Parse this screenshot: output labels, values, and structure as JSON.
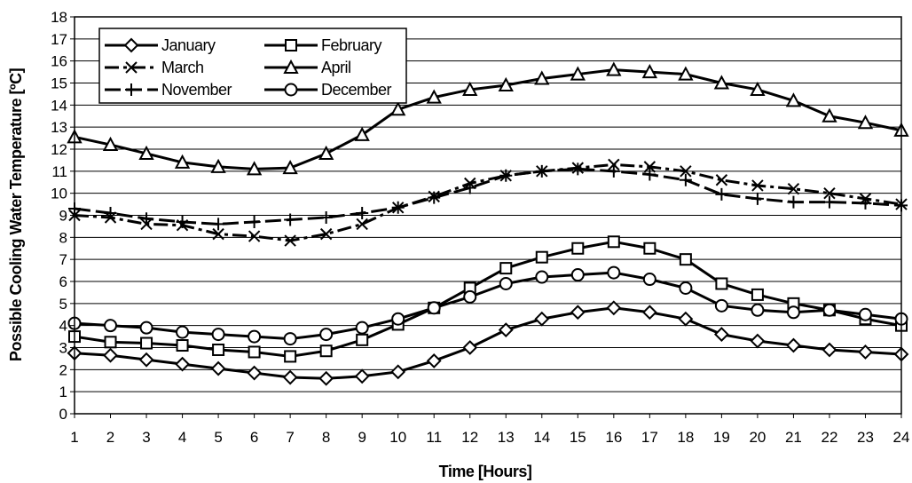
{
  "chart_data": {
    "type": "line",
    "xlabel": "Time [Hours]",
    "ylabel": "Possible Cooling Water Temperature [ºC]",
    "x": [
      1,
      2,
      3,
      4,
      5,
      6,
      7,
      8,
      9,
      10,
      11,
      12,
      13,
      14,
      15,
      16,
      17,
      18,
      19,
      20,
      21,
      22,
      23,
      24
    ],
    "xlim": [
      1,
      24
    ],
    "ylim": [
      0,
      18
    ],
    "ytick_step": 1,
    "grid": "horizontal",
    "legend_position": "top-left",
    "series": [
      {
        "name": "January",
        "marker": "diamond",
        "dash": "solid",
        "values": [
          2.75,
          2.65,
          2.45,
          2.25,
          2.05,
          1.85,
          1.65,
          1.6,
          1.7,
          1.9,
          2.4,
          3.0,
          3.8,
          4.3,
          4.6,
          4.8,
          4.6,
          4.3,
          3.6,
          3.3,
          3.1,
          2.9,
          2.8,
          2.7
        ]
      },
      {
        "name": "February",
        "marker": "square",
        "dash": "solid",
        "values": [
          3.5,
          3.25,
          3.2,
          3.1,
          2.9,
          2.8,
          2.6,
          2.85,
          3.35,
          4.05,
          4.8,
          5.7,
          6.6,
          7.1,
          7.5,
          7.8,
          7.5,
          7.0,
          5.9,
          5.4,
          5.0,
          4.7,
          4.3,
          4.0
        ]
      },
      {
        "name": "March",
        "marker": "x",
        "dash": "dashdot",
        "values": [
          9.0,
          8.9,
          8.6,
          8.55,
          8.15,
          8.05,
          7.85,
          8.15,
          8.6,
          9.35,
          9.85,
          10.45,
          10.8,
          11.0,
          11.15,
          11.3,
          11.2,
          11.0,
          10.6,
          10.35,
          10.2,
          10.0,
          9.75,
          9.5
        ]
      },
      {
        "name": "April",
        "marker": "triangle",
        "dash": "solid",
        "values": [
          12.55,
          12.2,
          11.8,
          11.4,
          11.2,
          11.1,
          11.15,
          11.8,
          12.65,
          13.8,
          14.35,
          14.7,
          14.9,
          15.2,
          15.4,
          15.6,
          15.5,
          15.4,
          15.0,
          14.7,
          14.2,
          13.5,
          13.2,
          12.85
        ]
      },
      {
        "name": "November",
        "marker": "plus",
        "dash": "longdash",
        "values": [
          9.3,
          9.1,
          8.85,
          8.7,
          8.6,
          8.7,
          8.8,
          8.9,
          9.1,
          9.35,
          9.8,
          10.25,
          10.8,
          11.0,
          11.1,
          11.0,
          10.85,
          10.6,
          9.95,
          9.75,
          9.6,
          9.6,
          9.55,
          9.45
        ]
      },
      {
        "name": "December",
        "marker": "circle",
        "dash": "solid",
        "values": [
          4.1,
          4.0,
          3.9,
          3.7,
          3.6,
          3.5,
          3.4,
          3.6,
          3.9,
          4.3,
          4.8,
          5.3,
          5.9,
          6.2,
          6.3,
          6.4,
          6.1,
          5.7,
          4.9,
          4.7,
          4.6,
          4.7,
          4.5,
          4.3
        ]
      }
    ]
  }
}
